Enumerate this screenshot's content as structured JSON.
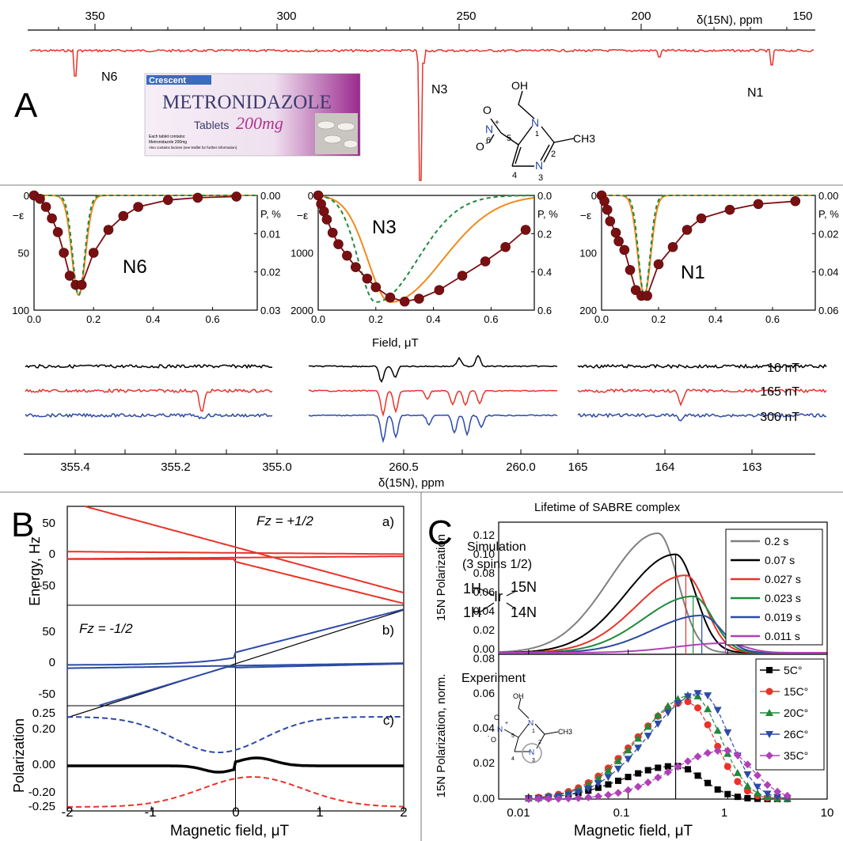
{
  "colors": {
    "red": "#e8332a",
    "dark_red": "#7a0f12",
    "orange": "#f28a1d",
    "green": "#1f8a3a",
    "blue": "#2c4aa8",
    "gray": "#808080",
    "magenta": "#b040b8",
    "black": "#000000"
  },
  "panel_a": {
    "letter": "A",
    "top_axis": {
      "label": "δ(15N), ppm",
      "ticks": [
        "350",
        "300",
        "250",
        "200",
        "150"
      ]
    },
    "peaks": {
      "n6": "N6",
      "n3": "N3",
      "n1": "N1"
    },
    "box": {
      "brand": "Crescent",
      "name": "METRONIDAZOLE",
      "tablets": "Tablets",
      "dose": "200mg",
      "fine_1": "Each tablet contains:",
      "fine_2": "Metronidazole 200mg",
      "fine_3": "Also contains lactose (see leaflet for further information)"
    },
    "molecule": {
      "oh": "OH",
      "ch3": "CH3",
      "o": "O",
      "n_plus": "N",
      "plus": "+",
      "n1": "N",
      "n3": "N",
      "num_1": "1",
      "num_2": "2",
      "num_3": "3",
      "num_4": "4",
      "num_5": "5",
      "num_6": "6",
      "minus": "-"
    },
    "small_plots": {
      "left_y_label": "−ε",
      "right_y_label": "P, %",
      "x_label": "Field, μT",
      "n6": {
        "name": "N6",
        "left_ticks": [
          "0",
          "50",
          "100"
        ],
        "right_ticks": [
          "0.00",
          "0.01",
          "0.02",
          "0.03"
        ],
        "x_ticks": [
          "0.0",
          "0.2",
          "0.4",
          "0.6"
        ]
      },
      "n3": {
        "name": "N3",
        "left_ticks": [
          "0",
          "1000",
          "2000"
        ],
        "right_ticks": [
          "0.0",
          "0.2",
          "0.4",
          "0.6"
        ],
        "x_ticks": [
          "0.0",
          "0.2",
          "0.4",
          "0.6"
        ]
      },
      "n1": {
        "name": "N1",
        "left_ticks": [
          "0",
          "100",
          "200"
        ],
        "right_ticks": [
          "0.00",
          "0.02",
          "0.04",
          "0.06"
        ],
        "x_ticks": [
          "0.0",
          "0.2",
          "0.4",
          "0.6"
        ]
      }
    },
    "spectra": {
      "x_label": "δ(15N), ppm",
      "left_ticks": [
        "355.4",
        "355.2",
        "355.0"
      ],
      "mid_ticks": [
        "260.5",
        "260.0"
      ],
      "right_ticks": [
        "165",
        "164",
        "163"
      ],
      "fields": [
        "10 nT",
        "165 nT",
        "300 nT"
      ]
    }
  },
  "panel_b": {
    "letter": "B",
    "y_label_energy": "Energy, Hz",
    "y_label_pol": "Polarization",
    "x_label": "Magnetic field, μT",
    "x_ticks": [
      "-2",
      "-1",
      "0",
      "1",
      "2"
    ],
    "a": {
      "tag": "a)",
      "fz": "Fz = +1/2",
      "y_ticks": [
        "50",
        "0",
        "-50"
      ]
    },
    "b": {
      "tag": "b)",
      "fz": "Fz = -1/2",
      "y_ticks": [
        "50",
        "0",
        "-50"
      ]
    },
    "c": {
      "tag": "c)",
      "y_ticks": [
        "0.25",
        "0.20",
        "0.00",
        "-0.20",
        "-0.25"
      ]
    }
  },
  "panel_c": {
    "letter": "C",
    "title": "Lifetime of SABRE complex",
    "sim": {
      "label_1": "Simulation",
      "label_2": "(3 spins 1/2)",
      "y_label": "15N Polarization",
      "y_ticks": [
        "0.00",
        "0.02",
        "0.04",
        "0.06",
        "0.08",
        "0.10",
        "0.12"
      ],
      "complex": [
        "1H",
        "Ir",
        "15N",
        "1H",
        "14N"
      ]
    },
    "exp": {
      "label": "Experiment",
      "y_label": "15N Polarization, norm.",
      "y_ticks": [
        "0.00",
        "0.02",
        "0.04",
        "0.06",
        "0.08"
      ]
    },
    "x_label": "Magnetic field, μT",
    "x_ticks": [
      "0.01",
      "0.1",
      "1",
      "10"
    ],
    "molecule": {
      "oh": "OH",
      "ch3": "CH3",
      "o": "O",
      "n_plus": "N",
      "n1": "N",
      "n3": "N",
      "num_1": "1",
      "num_2": "2",
      "num_3": "3",
      "num_4": "4",
      "num_5": "5",
      "minus": "-",
      "plus": "+"
    }
  },
  "chart_data": [
    {
      "type": "line",
      "title": "",
      "xlabel": "Field, μT",
      "ylabel": "−ε",
      "name": "N6 field dependence",
      "xlim": [
        0,
        0.75
      ],
      "ylim": [
        0,
        100
      ],
      "series": [
        {
          "name": "",
          "x": [
            0.0,
            0.02,
            0.04,
            0.06,
            0.08,
            0.1,
            0.12,
            0.14,
            0.16,
            0.2,
            0.25,
            0.3,
            0.35,
            0.45,
            0.55,
            0.68
          ],
          "values": [
            0,
            3,
            10,
            20,
            32,
            50,
            70,
            78,
            78,
            50,
            30,
            18,
            10,
            4,
            2,
            1
          ]
        }
      ]
    },
    {
      "type": "line",
      "title": "",
      "xlabel": "Field, μT",
      "ylabel": "−ε",
      "name": "N3 field dependence",
      "xlim": [
        0,
        0.75
      ],
      "ylim": [
        0,
        2000
      ],
      "series": [
        {
          "name": "",
          "x": [
            0.0,
            0.01,
            0.02,
            0.03,
            0.05,
            0.07,
            0.1,
            0.13,
            0.17,
            0.2,
            0.25,
            0.3,
            0.35,
            0.42,
            0.5,
            0.58,
            0.65,
            0.72
          ],
          "values": [
            0,
            150,
            280,
            420,
            650,
            850,
            1050,
            1250,
            1450,
            1600,
            1780,
            1850,
            1800,
            1650,
            1400,
            1150,
            900,
            600
          ]
        }
      ]
    },
    {
      "type": "line",
      "title": "",
      "xlabel": "Field, μT",
      "ylabel": "−ε",
      "name": "N1 field dependence",
      "xlim": [
        0,
        0.75
      ],
      "ylim": [
        0,
        200
      ],
      "series": [
        {
          "name": "",
          "x": [
            0.0,
            0.01,
            0.02,
            0.03,
            0.05,
            0.06,
            0.08,
            0.1,
            0.12,
            0.14,
            0.16,
            0.2,
            0.25,
            0.3,
            0.35,
            0.45,
            0.55,
            0.68
          ],
          "values": [
            0,
            10,
            25,
            45,
            65,
            80,
            95,
            130,
            165,
            175,
            175,
            120,
            90,
            60,
            40,
            25,
            15,
            10
          ]
        }
      ]
    },
    {
      "type": "line",
      "title": "Lifetime of SABRE complex",
      "xlabel": "Magnetic field, μT",
      "ylabel": "15N Polarization",
      "x_scale": "log",
      "xlim": [
        0.005,
        10
      ],
      "ylim": [
        0,
        0.13
      ],
      "legend": "top-right",
      "series": [
        {
          "name": "0.2 s",
          "peak_x": 0.2,
          "peak_y": 0.125
        },
        {
          "name": "0.07 s",
          "peak_x": 0.3,
          "peak_y": 0.103
        },
        {
          "name": "0.027 s",
          "peak_x": 0.38,
          "peak_y": 0.081
        },
        {
          "name": "0.023 s",
          "peak_x": 0.45,
          "peak_y": 0.059
        },
        {
          "name": "0.019 s",
          "peak_x": 0.55,
          "peak_y": 0.039
        },
        {
          "name": "0.011 s",
          "peak_x": 0.95,
          "peak_y": 0.01
        }
      ]
    },
    {
      "type": "scatter",
      "title": "",
      "xlabel": "Magnetic field, μT",
      "ylabel": "15N Polarization, norm.",
      "x_scale": "log",
      "xlim": [
        0.005,
        10
      ],
      "ylim": [
        0,
        0.08
      ],
      "legend": "top-right",
      "series": [
        {
          "name": "5C°",
          "peak_x": 0.3,
          "peak_y": 0.019
        },
        {
          "name": "15C°",
          "peak_x": 0.4,
          "peak_y": 0.056
        },
        {
          "name": "20C°",
          "peak_x": 0.45,
          "peak_y": 0.06
        },
        {
          "name": "26C°",
          "peak_x": 0.55,
          "peak_y": 0.061
        },
        {
          "name": "35C°",
          "peak_x": 0.95,
          "peak_y": 0.028
        }
      ]
    }
  ]
}
